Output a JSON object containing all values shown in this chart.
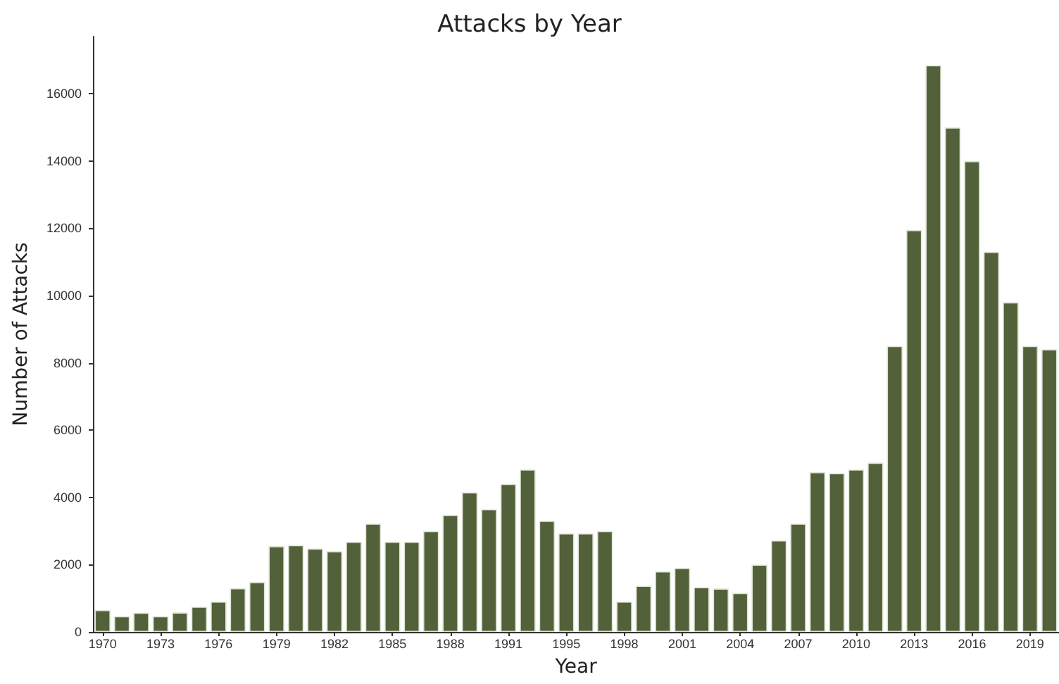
{
  "chart_data": {
    "type": "bar",
    "title": "Attacks by Year",
    "xlabel": "Year",
    "ylabel": "Number of Attacks",
    "categories": [
      "1970",
      null,
      null,
      "1973",
      null,
      null,
      "1976",
      null,
      null,
      "1979",
      null,
      null,
      "1982",
      null,
      null,
      "1985",
      null,
      null,
      "1988",
      null,
      null,
      "1991",
      null,
      null,
      "1995",
      null,
      null,
      "1998",
      null,
      null,
      "2001",
      null,
      null,
      "2004",
      null,
      null,
      "2007",
      null,
      null,
      "2010",
      null,
      null,
      "2013",
      null,
      null,
      "2016",
      null,
      null,
      "2019",
      null
    ],
    "values": [
      650,
      470,
      570,
      470,
      580,
      750,
      900,
      1300,
      1480,
      2550,
      2580,
      2480,
      2400,
      2680,
      3220,
      2680,
      2680,
      3000,
      3480,
      4150,
      3650,
      4400,
      4830,
      3300,
      2930,
      2930,
      3000,
      900,
      1370,
      1800,
      1900,
      1330,
      1290,
      1160,
      2000,
      2720,
      3220,
      4750,
      4720,
      4830,
      5030,
      8500,
      11950,
      16850,
      15000,
      14000,
      11300,
      9800,
      8500,
      8400
    ],
    "color": "#52613a",
    "ylim": [
      0,
      17700
    ],
    "yticks": [
      0,
      2000,
      4000,
      6000,
      8000,
      10000,
      12000,
      14000,
      16000
    ],
    "grid": false
  }
}
